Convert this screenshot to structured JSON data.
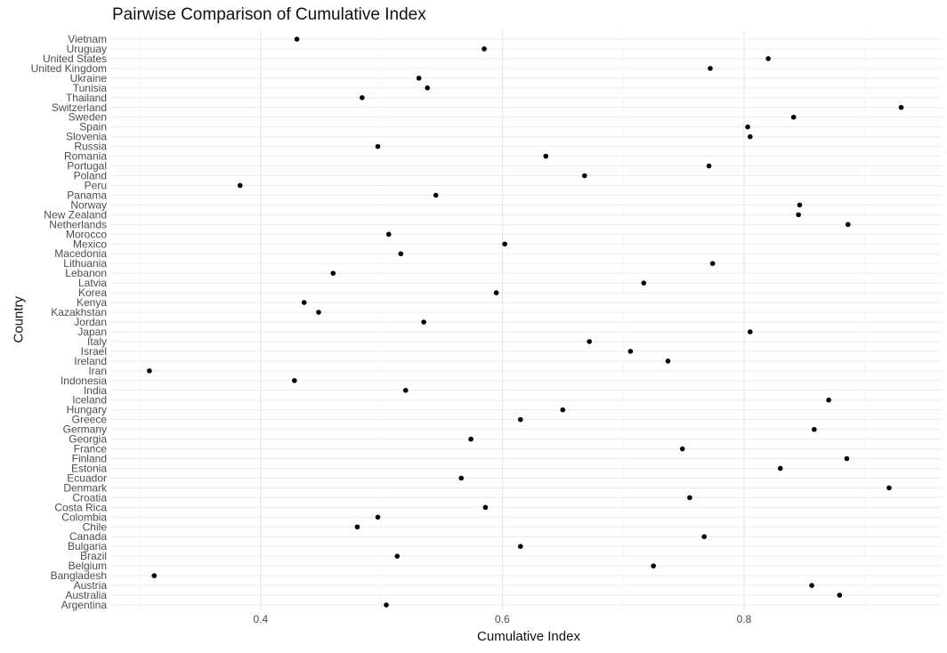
{
  "chart_data": {
    "type": "scatter",
    "title": "Pairwise Comparison of Cumulative Index",
    "xlabel": "Cumulative Index",
    "ylabel": "Country",
    "xlim": [
      0.3,
      0.935
    ],
    "x_ticks": [
      0.4,
      0.6,
      0.8
    ],
    "x_tick_labels": [
      "0.4",
      "0.6",
      "0.8"
    ],
    "grid": true,
    "legend": "none",
    "point_color": "#000000",
    "categories": [
      "Argentina",
      "Australia",
      "Austria",
      "Bangladesh",
      "Belgium",
      "Brazil",
      "Bulgaria",
      "Canada",
      "Chile",
      "Colombia",
      "Costa Rica",
      "Croatia",
      "Denmark",
      "Ecuador",
      "Estonia",
      "Finland",
      "France",
      "Georgia",
      "Germany",
      "Greece",
      "Hungary",
      "Iceland",
      "India",
      "Indonesia",
      "Iran",
      "Ireland",
      "Israel",
      "Italy",
      "Japan",
      "Jordan",
      "Kazakhstan",
      "Kenya",
      "Korea",
      "Latvia",
      "Lebanon",
      "Lithuania",
      "Macedonia",
      "Mexico",
      "Morocco",
      "Netherlands",
      "New Zealand",
      "Norway",
      "Panama",
      "Peru",
      "Poland",
      "Portugal",
      "Romania",
      "Russia",
      "Slovenia",
      "Spain",
      "Sweden",
      "Switzerland",
      "Thailand",
      "Tunisia",
      "Ukraine",
      "United Kingdom",
      "United States",
      "Uruguay",
      "Vietnam"
    ],
    "values": [
      0.504,
      0.879,
      0.856,
      0.312,
      0.725,
      0.513,
      0.615,
      0.767,
      0.48,
      0.497,
      0.586,
      0.755,
      0.92,
      0.566,
      0.83,
      0.885,
      0.749,
      0.574,
      0.858,
      0.615,
      0.65,
      0.87,
      0.52,
      0.428,
      0.308,
      0.737,
      0.706,
      0.672,
      0.805,
      0.535,
      0.448,
      0.436,
      0.595,
      0.717,
      0.46,
      0.774,
      0.516,
      0.602,
      0.506,
      0.886,
      0.845,
      0.846,
      0.545,
      0.383,
      0.668,
      0.771,
      0.636,
      0.497,
      0.805,
      0.803,
      0.841,
      0.93,
      0.484,
      0.538,
      0.531,
      0.772,
      0.82,
      0.585,
      0.43
    ]
  }
}
